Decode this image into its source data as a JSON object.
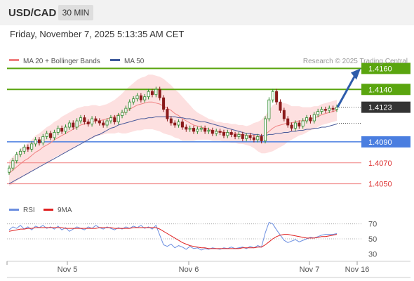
{
  "header": {
    "symbol": "USD/CAD",
    "timeframe": "30 MIN",
    "datetime": "Friday, November 7, 2025 5:13:35 AM CET"
  },
  "colors": {
    "up_candle": "#2e8b2e",
    "down_candle": "#8b1a1a",
    "ma20": "#f08080",
    "bollinger_fill": "#fde0e0",
    "ma50": "#4a5a9a",
    "resistance": "#5aa50f",
    "support_blue": "#4a7ee0",
    "support_red": "#f08080",
    "current_price": "#333333",
    "arrow": "#2e5cab",
    "rsi": "#6b8ee0",
    "rsi_ma": "#e02020"
  },
  "chart_data": [
    {
      "type": "candlestick",
      "title": "",
      "legend": [
        {
          "name": "MA 20 + Bollinger Bands",
          "color": "#f08080"
        },
        {
          "name": "MA 50",
          "color": "#3e5a9c"
        }
      ],
      "watermark": "Research © 2025 Trading Central",
      "ylim": [
        1.4035,
        1.4175
      ],
      "x_ticks": [
        "Nov 5",
        "Nov 6",
        "Nov 7",
        "Nov 16"
      ],
      "levels": [
        {
          "value": 1.416,
          "label": "1.4160",
          "kind": "resistance"
        },
        {
          "value": 1.414,
          "label": "1.4140",
          "kind": "resistance"
        },
        {
          "value": 1.4123,
          "label": "1.4123",
          "kind": "current"
        },
        {
          "value": 1.409,
          "label": "1.4090",
          "kind": "support"
        },
        {
          "value": 1.407,
          "label": "1.4070",
          "kind": "support_minor"
        },
        {
          "value": 1.405,
          "label": "1.4050",
          "kind": "support_minor"
        }
      ],
      "close": [
        1.4065,
        1.4072,
        1.4078,
        1.4081,
        1.4085,
        1.4083,
        1.4088,
        1.4092,
        1.4089,
        1.4095,
        1.4098,
        1.4094,
        1.4099,
        1.4103,
        1.41,
        1.4104,
        1.4108,
        1.4104,
        1.411,
        1.4113,
        1.4109,
        1.4107,
        1.4112,
        1.411,
        1.4108,
        1.4106,
        1.411,
        1.4113,
        1.4109,
        1.4115,
        1.4118,
        1.4122,
        1.4128,
        1.4131,
        1.4134,
        1.413,
        1.4133,
        1.4138,
        1.4135,
        1.414,
        1.4132,
        1.4121,
        1.4112,
        1.4108,
        1.4106,
        1.4109,
        1.4104,
        1.4102,
        1.4103,
        1.41,
        1.4102,
        1.4103,
        1.41,
        1.4101,
        1.4098,
        1.41,
        1.4099,
        1.4096,
        1.4099,
        1.4097,
        1.4095,
        1.4097,
        1.4093,
        1.4096,
        1.4094,
        1.4092,
        1.4095,
        1.4091,
        1.4112,
        1.413,
        1.4138,
        1.4128,
        1.412,
        1.4112,
        1.4106,
        1.4103,
        1.4108,
        1.4105,
        1.411,
        1.4113,
        1.411,
        1.4116,
        1.4119,
        1.4121,
        1.412,
        1.4122,
        1.4121,
        1.4123
      ],
      "ma20": [
        1.406,
        1.4063,
        1.4066,
        1.4069,
        1.4072,
        1.4074,
        1.4077,
        1.408,
        1.4082,
        1.4085,
        1.4087,
        1.4089,
        1.4092,
        1.4094,
        1.4096,
        1.4098,
        1.41,
        1.4102,
        1.4104,
        1.4106,
        1.4107,
        1.4108,
        1.4109,
        1.411,
        1.411,
        1.4111,
        1.4112,
        1.4113,
        1.4114,
        1.4116,
        1.4117,
        1.4119,
        1.4121,
        1.4123,
        1.4125,
        1.4126,
        1.4127,
        1.4128,
        1.4128,
        1.4127,
        1.4126,
        1.4124,
        1.4122,
        1.412,
        1.4117,
        1.4115,
        1.4112,
        1.411,
        1.4108,
        1.4106,
        1.4105,
        1.4104,
        1.4103,
        1.4102,
        1.4101,
        1.41,
        1.41,
        1.4099,
        1.4099,
        1.4098,
        1.4098,
        1.4097,
        1.4097,
        1.4096,
        1.4096,
        1.4096,
        1.4095,
        1.4095,
        1.4097,
        1.41,
        1.4103,
        1.4105,
        1.4106,
        1.4107,
        1.4108,
        1.4108,
        1.4109,
        1.411,
        1.411,
        1.4111,
        1.4112,
        1.4113,
        1.4114,
        1.4116,
        1.4117,
        1.4118,
        1.4119,
        1.412
      ],
      "ma50": [
        1.405,
        1.4052,
        1.4054,
        1.4056,
        1.4058,
        1.406,
        1.4062,
        1.4064,
        1.4066,
        1.4068,
        1.407,
        1.4072,
        1.4074,
        1.4076,
        1.4078,
        1.408,
        1.4082,
        1.4084,
        1.4086,
        1.4088,
        1.409,
        1.4092,
        1.4094,
        1.4096,
        1.4097,
        1.4099,
        1.4101,
        1.4103,
        1.4104,
        1.4106,
        1.4107,
        1.4108,
        1.4109,
        1.411,
        1.4111,
        1.4112,
        1.4112,
        1.4113,
        1.4113,
        1.4114,
        1.4114,
        1.4114,
        1.4114,
        1.4114,
        1.4114,
        1.4113,
        1.4113,
        1.4112,
        1.4112,
        1.4111,
        1.411,
        1.4109,
        1.4109,
        1.4108,
        1.4107,
        1.4106,
        1.4105,
        1.4104,
        1.4103,
        1.4102,
        1.4101,
        1.41,
        1.4099,
        1.4098,
        1.4098,
        1.4097,
        1.4097,
        1.4096,
        1.4096,
        1.4097,
        1.4097,
        1.4098,
        1.4098,
        1.4099,
        1.4099,
        1.41,
        1.41,
        1.4101,
        1.4101,
        1.4102,
        1.4102,
        1.4103,
        1.4103,
        1.4104,
        1.4104,
        1.4105,
        1.4106,
        1.4107
      ],
      "bollinger_width": [
        0.0012,
        0.0013,
        0.0013,
        0.0014,
        0.0014,
        0.0015,
        0.0015,
        0.0016,
        0.0016,
        0.0016,
        0.0017,
        0.0017,
        0.0017,
        0.0017,
        0.0018,
        0.0018,
        0.0018,
        0.0018,
        0.0018,
        0.0017,
        0.0017,
        0.0016,
        0.0016,
        0.0015,
        0.0014,
        0.0014,
        0.0014,
        0.0015,
        0.0016,
        0.0017,
        0.0019,
        0.0021,
        0.0022,
        0.0023,
        0.0024,
        0.0025,
        0.0025,
        0.0026,
        0.0026,
        0.0026,
        0.0026,
        0.0026,
        0.0025,
        0.0024,
        0.0023,
        0.0022,
        0.0021,
        0.0019,
        0.0017,
        0.0015,
        0.0013,
        0.0012,
        0.0011,
        0.001,
        0.001,
        0.0009,
        0.0009,
        0.0009,
        0.0009,
        0.0009,
        0.0009,
        0.0009,
        0.0009,
        0.0009,
        0.001,
        0.0012,
        0.0014,
        0.0016,
        0.0018,
        0.002,
        0.0022,
        0.0022,
        0.0021,
        0.002,
        0.0018,
        0.0016,
        0.0015,
        0.0014,
        0.0013,
        0.0012,
        0.0011,
        0.0011,
        0.001,
        0.001,
        0.001,
        0.001,
        0.001,
        0.001
      ],
      "forecast_arrow": {
        "from": 1.4123,
        "to": 1.416
      }
    },
    {
      "type": "line",
      "title": "",
      "legend": [
        {
          "name": "RSI",
          "color": "#6b8ee0"
        },
        {
          "name": "9MA",
          "color": "#e02020"
        }
      ],
      "y_ticks": [
        70,
        50,
        30
      ],
      "ylim": [
        20,
        80
      ],
      "rsi": [
        62,
        66,
        64,
        68,
        63,
        66,
        62,
        67,
        65,
        68,
        64,
        66,
        63,
        67,
        62,
        65,
        60,
        63,
        66,
        64,
        62,
        66,
        64,
        68,
        65,
        63,
        66,
        64,
        62,
        65,
        63,
        66,
        64,
        67,
        65,
        68,
        64,
        66,
        63,
        68,
        55,
        42,
        40,
        43,
        38,
        41,
        39,
        36,
        40,
        37,
        38,
        35,
        37,
        36,
        38,
        37,
        36,
        38,
        37,
        39,
        37,
        38,
        39,
        37,
        40,
        38,
        41,
        39,
        58,
        72,
        70,
        62,
        55,
        48,
        45,
        47,
        49,
        46,
        48,
        50,
        52,
        51,
        53,
        55,
        56,
        56,
        56,
        57
      ],
      "ma9": [
        60,
        61,
        62,
        63,
        63,
        64,
        64,
        65,
        65,
        65,
        65,
        65,
        65,
        65,
        65,
        64,
        64,
        64,
        64,
        64,
        64,
        64,
        64,
        64,
        65,
        65,
        65,
        65,
        64,
        64,
        64,
        64,
        64,
        65,
        65,
        65,
        65,
        65,
        65,
        65,
        63,
        60,
        57,
        54,
        51,
        48,
        45,
        43,
        41,
        40,
        39,
        38,
        38,
        37,
        37,
        37,
        37,
        37,
        37,
        37,
        37,
        37,
        38,
        38,
        38,
        38,
        39,
        39,
        42,
        46,
        50,
        53,
        55,
        56,
        56,
        55,
        54,
        53,
        52,
        51,
        51,
        51,
        52,
        53,
        53,
        54,
        55,
        56
      ]
    }
  ]
}
